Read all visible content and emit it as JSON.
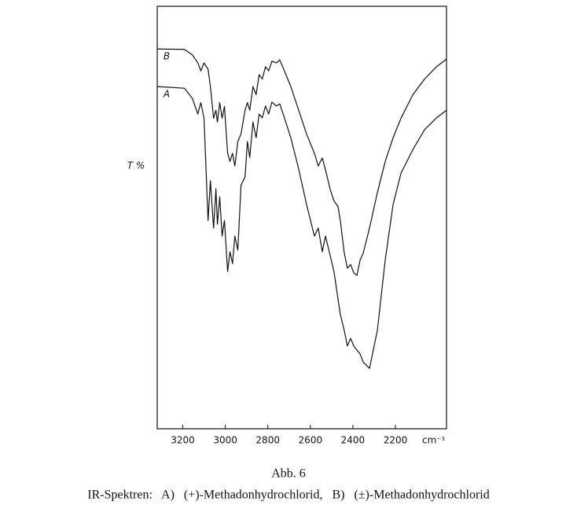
{
  "chart_data": {
    "type": "line",
    "x_label": "cm⁻¹",
    "y_label": "T %",
    "x": [
      3320,
      3192,
      3155,
      3129,
      3115,
      3100,
      3081,
      3070,
      3055,
      3044,
      3037,
      3026,
      3015,
      3004,
      2989,
      2978,
      2966,
      2955,
      2941,
      2926,
      2907,
      2896,
      2885,
      2870,
      2855,
      2841,
      2826,
      2811,
      2796,
      2781,
      2759,
      2744,
      2722,
      2692,
      2655,
      2618,
      2581,
      2563,
      2544,
      2529,
      2507,
      2489,
      2470,
      2459,
      2441,
      2426,
      2411,
      2396,
      2381,
      2366,
      2352,
      2322,
      2285,
      2248,
      2211,
      2174,
      2118,
      2063,
      2007,
      1960
    ],
    "series": [
      {
        "name": "A",
        "color": "#111111",
        "values": [
          81.0,
          80.6,
          78.2,
          74.5,
          77.2,
          73.5,
          49.3,
          58.7,
          47.5,
          56.8,
          48.4,
          54.9,
          45.6,
          49.3,
          37.2,
          41.9,
          39.1,
          45.6,
          42.3,
          57.7,
          59.6,
          68.0,
          64.2,
          72.6,
          68.9,
          74.5,
          73.6,
          76.4,
          74.5,
          77.3,
          76.4,
          76.9,
          73.6,
          68.9,
          61.5,
          53.1,
          45.6,
          47.5,
          41.9,
          45.6,
          41.0,
          37.2,
          30.7,
          27.0,
          23.3,
          19.6,
          21.4,
          19.6,
          18.6,
          17.7,
          15.8,
          14.3,
          23.3,
          40.0,
          53.1,
          60.5,
          66.1,
          70.8,
          73.6,
          75.4
        ]
      },
      {
        "name": "B",
        "color": "#111111",
        "values": [
          89.9,
          89.8,
          88.5,
          86.6,
          84.7,
          86.6,
          85.1,
          81.0,
          73.5,
          75.4,
          72.6,
          77.2,
          73.5,
          76.3,
          65.2,
          63.3,
          65.2,
          62.2,
          68.0,
          69.8,
          75.4,
          77.2,
          75.4,
          81.0,
          79.1,
          83.8,
          82.8,
          85.7,
          84.7,
          87.0,
          86.6,
          87.3,
          84.7,
          81.0,
          75.4,
          69.8,
          65.2,
          62.2,
          64.1,
          61.3,
          56.7,
          53.9,
          52.6,
          49.2,
          41.7,
          38.0,
          38.9,
          36.9,
          36.3,
          40.0,
          41.5,
          47.5,
          55.9,
          63.3,
          68.9,
          73.5,
          79.1,
          82.8,
          85.7,
          87.5
        ]
      }
    ],
    "xlim": [
      3320,
      1960
    ],
    "ylim": [
      0,
      100
    ],
    "xticks": [
      3200,
      3000,
      2800,
      2600,
      2400,
      2200
    ],
    "grid": false,
    "caption_title": "Abb. 6",
    "caption": "IR-Spektren:   A)   (+)-Methadonhydrochlorid,   B)   (±)-Methadonhydrochlorid"
  }
}
